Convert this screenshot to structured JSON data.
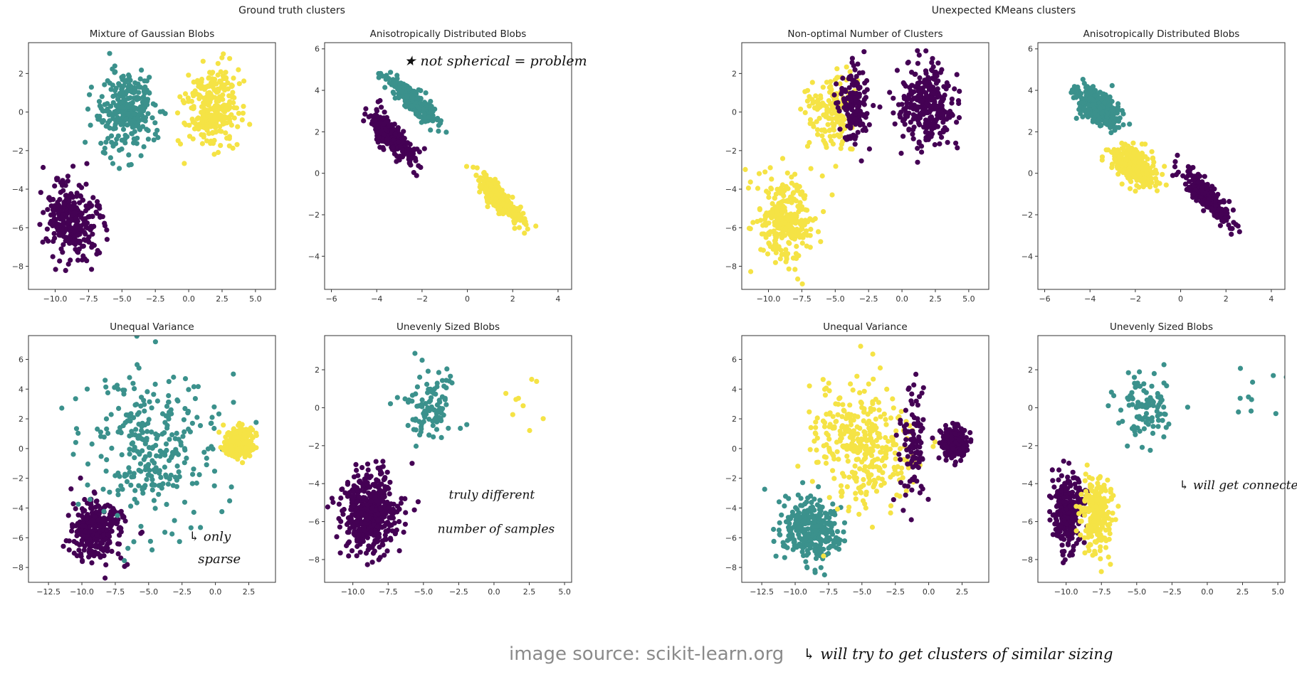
{
  "figure_titles": [
    "Ground truth clusters",
    "Unexpected KMeans clusters"
  ],
  "colors": {
    "purple": "#440154",
    "teal": "#3b918c",
    "yellow": "#f5e345"
  },
  "source_label": "image source:  scikit-learn.org",
  "source_note": "will try to get clusters of similar sizing",
  "chart_data": [
    {
      "type": "scatter",
      "title": "Mixture of Gaussian Blobs",
      "xlim": [
        -12,
        6.5
      ],
      "ylim": [
        -9.2,
        3.6
      ],
      "xticks": [
        -10.0,
        -7.5,
        -5.0,
        -2.5,
        0.0,
        2.5,
        5.0
      ],
      "yticks": [
        2,
        0,
        -2,
        -4,
        -6,
        -8
      ],
      "clusters": [
        {
          "color": "purple",
          "n": 300,
          "cx": -8.8,
          "cy": -5.6,
          "sx": 1.0,
          "sy": 1.0
        },
        {
          "color": "teal",
          "n": 300,
          "cx": -4.6,
          "cy": 0.0,
          "sx": 1.0,
          "sy": 1.0
        },
        {
          "color": "yellow",
          "n": 300,
          "cx": 1.8,
          "cy": 0.3,
          "sx": 1.0,
          "sy": 1.0
        }
      ],
      "annotations": []
    },
    {
      "type": "scatter",
      "title": "Anisotropically Distributed Blobs",
      "xlim": [
        -6.3,
        4.6
      ],
      "ylim": [
        -5.6,
        6.3
      ],
      "xticks": [
        -6,
        -4,
        -2,
        0,
        2,
        4
      ],
      "yticks": [
        6,
        4,
        2,
        0,
        -2,
        -4
      ],
      "clusters": [
        {
          "color": "purple",
          "n": 300,
          "cx": -3.3,
          "cy": 1.7,
          "ux": 1.0,
          "uy": -1.15,
          "su": 0.75,
          "sv": 0.25
        },
        {
          "color": "teal",
          "n": 300,
          "cx": -2.4,
          "cy": 3.5,
          "ux": 1.0,
          "uy": -1.05,
          "su": 0.7,
          "sv": 0.2
        },
        {
          "color": "yellow",
          "n": 300,
          "cx": 1.4,
          "cy": -1.2,
          "ux": 1.0,
          "uy": -1.25,
          "su": 0.75,
          "sv": 0.2
        }
      ],
      "annotations": [
        {
          "text": "★ not spherical = problem",
          "x": -2.8,
          "y": 5.2,
          "size": 19
        }
      ]
    },
    {
      "type": "scatter",
      "title": "Unequal Variance",
      "xlim": [
        -14,
        4.5
      ],
      "ylim": [
        -9.0,
        7.6
      ],
      "xticks": [
        -12.5,
        -10.0,
        -7.5,
        -5.0,
        -2.5,
        0.0,
        2.5
      ],
      "yticks": [
        6,
        4,
        2,
        0,
        -2,
        -4,
        -6,
        -8
      ],
      "clusters": [
        {
          "color": "purple",
          "n": 300,
          "cx": -8.9,
          "cy": -5.5,
          "sx": 1.0,
          "sy": 1.0
        },
        {
          "color": "teal",
          "n": 300,
          "cx": -4.8,
          "cy": 0.0,
          "sx": 2.5,
          "sy": 2.5
        },
        {
          "color": "yellow",
          "n": 300,
          "cx": 1.8,
          "cy": 0.4,
          "sx": 0.5,
          "sy": 0.5
        }
      ],
      "annotations": [
        {
          "text": "↳ only",
          "x": -2.0,
          "y": -6.2,
          "size": 18
        },
        {
          "text": "sparse",
          "x": -1.3,
          "y": -7.7,
          "size": 18
        }
      ]
    },
    {
      "type": "scatter",
      "title": "Unevenly Sized Blobs",
      "xlim": [
        -12,
        5.5
      ],
      "ylim": [
        -9.2,
        3.8
      ],
      "xticks": [
        -10.0,
        -7.5,
        -5.0,
        -2.5,
        0.0,
        2.5,
        5.0
      ],
      "yticks": [
        2,
        0,
        -2,
        -4,
        -6,
        -8
      ],
      "clusters": [
        {
          "color": "purple",
          "n": 500,
          "cx": -8.8,
          "cy": -5.5,
          "sx": 1.0,
          "sy": 1.0
        },
        {
          "color": "teal",
          "n": 100,
          "cx": -4.5,
          "cy": 0.1,
          "sx": 1.0,
          "sy": 1.0
        },
        {
          "color": "yellow",
          "n": 10,
          "cx": 2.4,
          "cy": 0.5,
          "sx": 1.2,
          "sy": 1.2
        }
      ],
      "annotations": [
        {
          "text": "truly different",
          "x": -3.2,
          "y": -4.8,
          "size": 17
        },
        {
          "text": "number of samples",
          "x": -4.0,
          "y": -6.6,
          "size": 17
        }
      ]
    },
    {
      "type": "scatter",
      "title": "Non-optimal Number of Clusters",
      "xlim": [
        -12,
        6.5
      ],
      "ylim": [
        -9.2,
        3.6
      ],
      "xticks": [
        -10.0,
        -7.5,
        -5.0,
        -2.5,
        0.0,
        2.5,
        5.0
      ],
      "yticks": [
        2,
        0,
        -2,
        -4,
        -6,
        -8
      ],
      "clusters": [
        {
          "color": "yellow",
          "n": 300,
          "cx": -8.8,
          "cy": -5.6,
          "sx": 1.0,
          "sy": 1.0
        },
        {
          "color": "yellow",
          "n": 150,
          "cx": -5.3,
          "cy": 0.0,
          "sx": 0.8,
          "sy": 1.0
        },
        {
          "color": "purple",
          "n": 150,
          "cx": -3.6,
          "cy": 0.3,
          "sx": 0.55,
          "sy": 1.0
        },
        {
          "color": "purple",
          "n": 300,
          "cx": 1.8,
          "cy": 0.3,
          "sx": 1.0,
          "sy": 1.0
        }
      ],
      "annotations": []
    },
    {
      "type": "scatter",
      "title": "Anisotropically Distributed Blobs",
      "xlim": [
        -6.3,
        4.6
      ],
      "ylim": [
        -5.6,
        6.3
      ],
      "xticks": [
        -6,
        -4,
        -2,
        0,
        2,
        4
      ],
      "yticks": [
        6,
        4,
        2,
        0,
        -2,
        -4
      ],
      "clusters": [
        {
          "color": "teal",
          "n": 300,
          "cx": -3.7,
          "cy": 3.2,
          "ux": 1.0,
          "uy": -1.05,
          "su": 0.55,
          "sv": 0.35
        },
        {
          "color": "yellow",
          "n": 300,
          "cx": -2.1,
          "cy": 0.4,
          "ux": 1.0,
          "uy": -1.05,
          "su": 0.6,
          "sv": 0.35
        },
        {
          "color": "purple",
          "n": 300,
          "cx": 1.2,
          "cy": -1.2,
          "ux": 1.0,
          "uy": -1.25,
          "su": 0.8,
          "sv": 0.2
        }
      ],
      "annotations": []
    },
    {
      "type": "scatter",
      "title": "Unequal Variance",
      "xlim": [
        -14,
        4.5
      ],
      "ylim": [
        -9.0,
        7.6
      ],
      "xticks": [
        -12.5,
        -10.0,
        -7.5,
        -5.0,
        -2.5,
        0.0,
        2.5
      ],
      "yticks": [
        6,
        4,
        2,
        0,
        -2,
        -4,
        -6,
        -8
      ],
      "clusters": [
        {
          "color": "teal",
          "n": 300,
          "cx": -8.9,
          "cy": -5.5,
          "sx": 1.1,
          "sy": 1.1
        },
        {
          "color": "yellow",
          "n": 350,
          "cx": -5.0,
          "cy": 0.3,
          "sx": 1.9,
          "sy": 2.1
        },
        {
          "color": "purple",
          "n": 100,
          "cx": -1.2,
          "cy": -0.2,
          "sx": 0.5,
          "sy": 2.0
        },
        {
          "color": "purple",
          "n": 200,
          "cx": 1.9,
          "cy": 0.4,
          "sx": 0.5,
          "sy": 0.5
        }
      ],
      "annotations": []
    },
    {
      "type": "scatter",
      "title": "Unevenly Sized Blobs",
      "xlim": [
        -12,
        5.5
      ],
      "ylim": [
        -9.2,
        3.8
      ],
      "xticks": [
        -10.0,
        -7.5,
        -5.0,
        -2.5,
        0.0,
        2.5,
        5.0
      ],
      "yticks": [
        2,
        0,
        -2,
        -4,
        -6,
        -8
      ],
      "clusters": [
        {
          "color": "purple",
          "n": 250,
          "cx": -9.9,
          "cy": -5.5,
          "sx": 0.55,
          "sy": 1.0
        },
        {
          "color": "yellow",
          "n": 250,
          "cx": -7.9,
          "cy": -5.5,
          "sx": 0.55,
          "sy": 1.0
        },
        {
          "color": "teal",
          "n": 100,
          "cx": -4.5,
          "cy": 0.1,
          "sx": 1.0,
          "sy": 1.0
        },
        {
          "color": "teal",
          "n": 10,
          "cx": 2.4,
          "cy": 0.5,
          "sx": 1.2,
          "sy": 1.2
        }
      ],
      "annotations": [
        {
          "text": "↳ will get connected",
          "x": -2.0,
          "y": -4.3,
          "size": 17
        }
      ]
    }
  ]
}
